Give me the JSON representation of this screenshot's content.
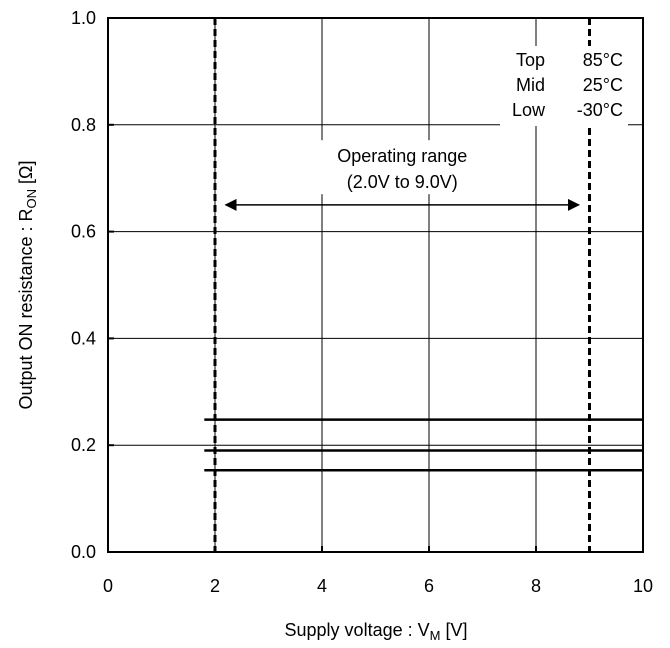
{
  "chart_data": {
    "type": "line",
    "xlabel": {
      "main": "Supply voltage : V",
      "sub": "M",
      "unit": " [V]"
    },
    "ylabel": {
      "main": "Output ON resistance : R",
      "sub": "ON",
      "unit": " [Ω]"
    },
    "xlim": [
      0,
      10
    ],
    "ylim": [
      0.0,
      1.0
    ],
    "x_ticks": [
      0,
      2,
      4,
      6,
      8,
      10
    ],
    "x_tick_labels": [
      "0",
      "2",
      "4",
      "6",
      "8",
      "10"
    ],
    "y_ticks": [
      0.0,
      0.2,
      0.4,
      0.6,
      0.8,
      1.0
    ],
    "y_tick_labels": [
      "0.0",
      "0.2",
      "0.4",
      "0.6",
      "0.8",
      "1.0"
    ],
    "grid": true,
    "series": [
      {
        "name": "85°C",
        "x": [
          1.8,
          10
        ],
        "y": [
          0.248,
          0.248
        ]
      },
      {
        "name": "25°C",
        "x": [
          1.8,
          10
        ],
        "y": [
          0.19,
          0.19
        ]
      },
      {
        "name": "-30°C",
        "x": [
          1.8,
          10
        ],
        "y": [
          0.153,
          0.153
        ]
      }
    ],
    "legend": {
      "placement": "top-right",
      "entries": [
        {
          "position": "Top",
          "temp": "85°C"
        },
        {
          "position": "Mid",
          "temp": "25°C"
        },
        {
          "position": "Low",
          "temp": "-30°C"
        }
      ]
    },
    "annotations": {
      "range_lines": [
        2.0,
        9.0
      ],
      "range_text_line1": "Operating range",
      "range_text_line2": "(2.0V to 9.0V)",
      "arrow": {
        "from": 2.2,
        "to": 8.8,
        "y": 0.65
      },
      "text_y": 0.73
    }
  }
}
